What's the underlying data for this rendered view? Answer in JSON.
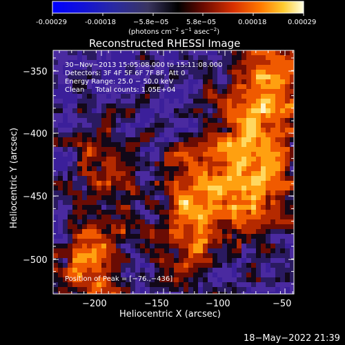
{
  "colorbar": {
    "ticks": [
      "-0.00029",
      "-0.00018",
      "−5.8e−05",
      "5.8e−05",
      "0.00018",
      "0.00029"
    ],
    "unit_main": "(photons cm",
    "unit_sup1": "−2",
    "unit_mid": " s",
    "unit_sup2": "−1",
    "unit_mid2": " asec",
    "unit_sup3": "−2",
    "unit_end": ")",
    "colors": [
      "#0000ff",
      "#1b1bc8",
      "#2a2a9a",
      "#3b3b70",
      "#000000",
      "#551000",
      "#aa2000",
      "#ff5500",
      "#ffaa00",
      "#ffffc0"
    ]
  },
  "plot": {
    "title": "Reconstructed RHESSI Image",
    "xlabel": "Heliocentric X (arcsec)",
    "ylabel": "Heliocentric Y (arcsec)",
    "x_ticks": [
      "−200",
      "−150",
      "−100",
      "−50"
    ],
    "y_ticks": [
      "−350",
      "−400",
      "−450",
      "−500"
    ],
    "xlim": [
      -236,
      -36
    ],
    "ylim": [
      -526,
      -326
    ],
    "info_lines": [
      "30−Nov−2013 15:05:08.000 to 15:11:08.000",
      "Detectors: 3F 4F 5F 6F 7F 8F, Att 0",
      "Energy Range: 25.0 − 50.0 keV",
      "Clean     Total counts: 1.05E+04"
    ],
    "peak_text": "Position of Peak = [−76.,−436]"
  },
  "footer": {
    "timestamp": "18−May−2022 21:39"
  }
}
